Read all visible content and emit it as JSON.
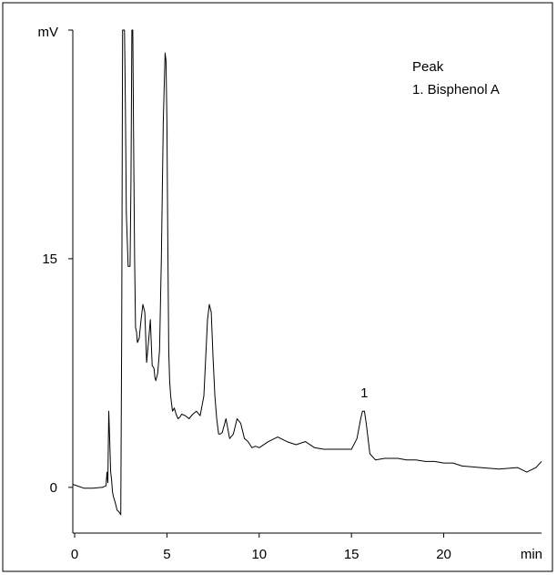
{
  "chart_data": {
    "type": "line",
    "title": "",
    "xlabel": "",
    "ylabel": "",
    "x_unit": "min",
    "y_unit": "mV",
    "xlim": [
      -0.1,
      25.3
    ],
    "ylim": [
      -3,
      30
    ],
    "x_ticks": [
      0,
      5,
      10,
      15,
      20
    ],
    "y_ticks": [
      0,
      15
    ],
    "x_tick_labels": [
      "0",
      "5",
      "10",
      "15",
      "20"
    ],
    "y_tick_labels": [
      "0",
      "15"
    ],
    "grid": false,
    "legend": {
      "placement": "top-right",
      "heading": "Peak",
      "entries": [
        "1. Bisphenol A"
      ]
    },
    "annotations": [
      {
        "label": "1",
        "x": 15.7,
        "y": 5.9
      }
    ],
    "series": [
      {
        "color": "#000000",
        "x": [
          -0.1,
          0.5,
          1.0,
          1.5,
          1.7,
          1.75,
          1.8,
          1.85,
          1.9,
          1.95,
          2.0,
          2.05,
          2.1,
          2.2,
          2.3,
          2.4,
          2.5,
          2.55,
          2.6,
          2.65,
          2.7,
          2.75,
          2.8,
          2.9,
          3.0,
          3.05,
          3.1,
          3.15,
          3.2,
          3.25,
          3.3,
          3.35,
          3.4,
          3.5,
          3.6,
          3.7,
          3.8,
          3.9,
          4.0,
          4.1,
          4.2,
          4.3,
          4.35,
          4.4,
          4.5,
          4.6,
          4.7,
          4.8,
          4.9,
          4.95,
          5.0,
          5.05,
          5.1,
          5.15,
          5.2,
          5.25,
          5.3,
          5.4,
          5.5,
          5.6,
          5.7,
          5.8,
          6.0,
          6.2,
          6.4,
          6.6,
          6.8,
          7.0,
          7.2,
          7.3,
          7.4,
          7.5,
          7.6,
          7.7,
          7.8,
          7.9,
          8.0,
          8.2,
          8.4,
          8.6,
          8.8,
          9.0,
          9.2,
          9.4,
          9.6,
          9.8,
          10.0,
          10.5,
          11.0,
          11.5,
          12.0,
          12.5,
          13.0,
          13.5,
          14.0,
          14.5,
          15.0,
          15.3,
          15.5,
          15.6,
          15.7,
          15.8,
          15.9,
          16.0,
          16.3,
          16.8,
          17.5,
          18.0,
          18.5,
          19.0,
          19.5,
          20.0,
          20.5,
          21.0,
          22.0,
          23.0,
          24.0,
          24.5,
          25.0,
          25.3
        ],
        "y": [
          0.2,
          -0.05,
          -0.05,
          0.0,
          0.1,
          1.0,
          0.3,
          5.0,
          3.0,
          1.0,
          0.5,
          -0.3,
          -0.6,
          -1.0,
          -1.5,
          -1.6,
          -1.8,
          10.0,
          30.0,
          30.0,
          30.0,
          25.0,
          18.0,
          14.5,
          14.5,
          20.0,
          30.0,
          30.0,
          22.0,
          15.0,
          10.5,
          10.2,
          9.5,
          9.8,
          11.0,
          12.0,
          11.5,
          8.2,
          9.5,
          11.0,
          8.0,
          7.8,
          7.2,
          7.0,
          7.5,
          9.0,
          15.0,
          24.0,
          28.5,
          28.0,
          24.0,
          16.0,
          9.0,
          7.0,
          6.0,
          5.5,
          5.0,
          5.2,
          4.8,
          4.5,
          4.6,
          4.8,
          4.7,
          4.5,
          4.8,
          5.0,
          4.7,
          6.0,
          11.0,
          12.0,
          11.5,
          8.5,
          6.0,
          4.5,
          3.5,
          3.5,
          3.6,
          4.5,
          3.2,
          3.5,
          4.5,
          4.2,
          3.2,
          3.0,
          2.6,
          2.7,
          2.6,
          3.0,
          3.3,
          3.0,
          2.8,
          3.0,
          2.6,
          2.5,
          2.5,
          2.5,
          2.5,
          3.2,
          4.5,
          5.0,
          5.0,
          4.2,
          3.2,
          2.2,
          1.8,
          1.9,
          1.9,
          1.8,
          1.8,
          1.7,
          1.7,
          1.6,
          1.6,
          1.4,
          1.3,
          1.2,
          1.3,
          1.0,
          1.3,
          1.7
        ]
      }
    ]
  }
}
